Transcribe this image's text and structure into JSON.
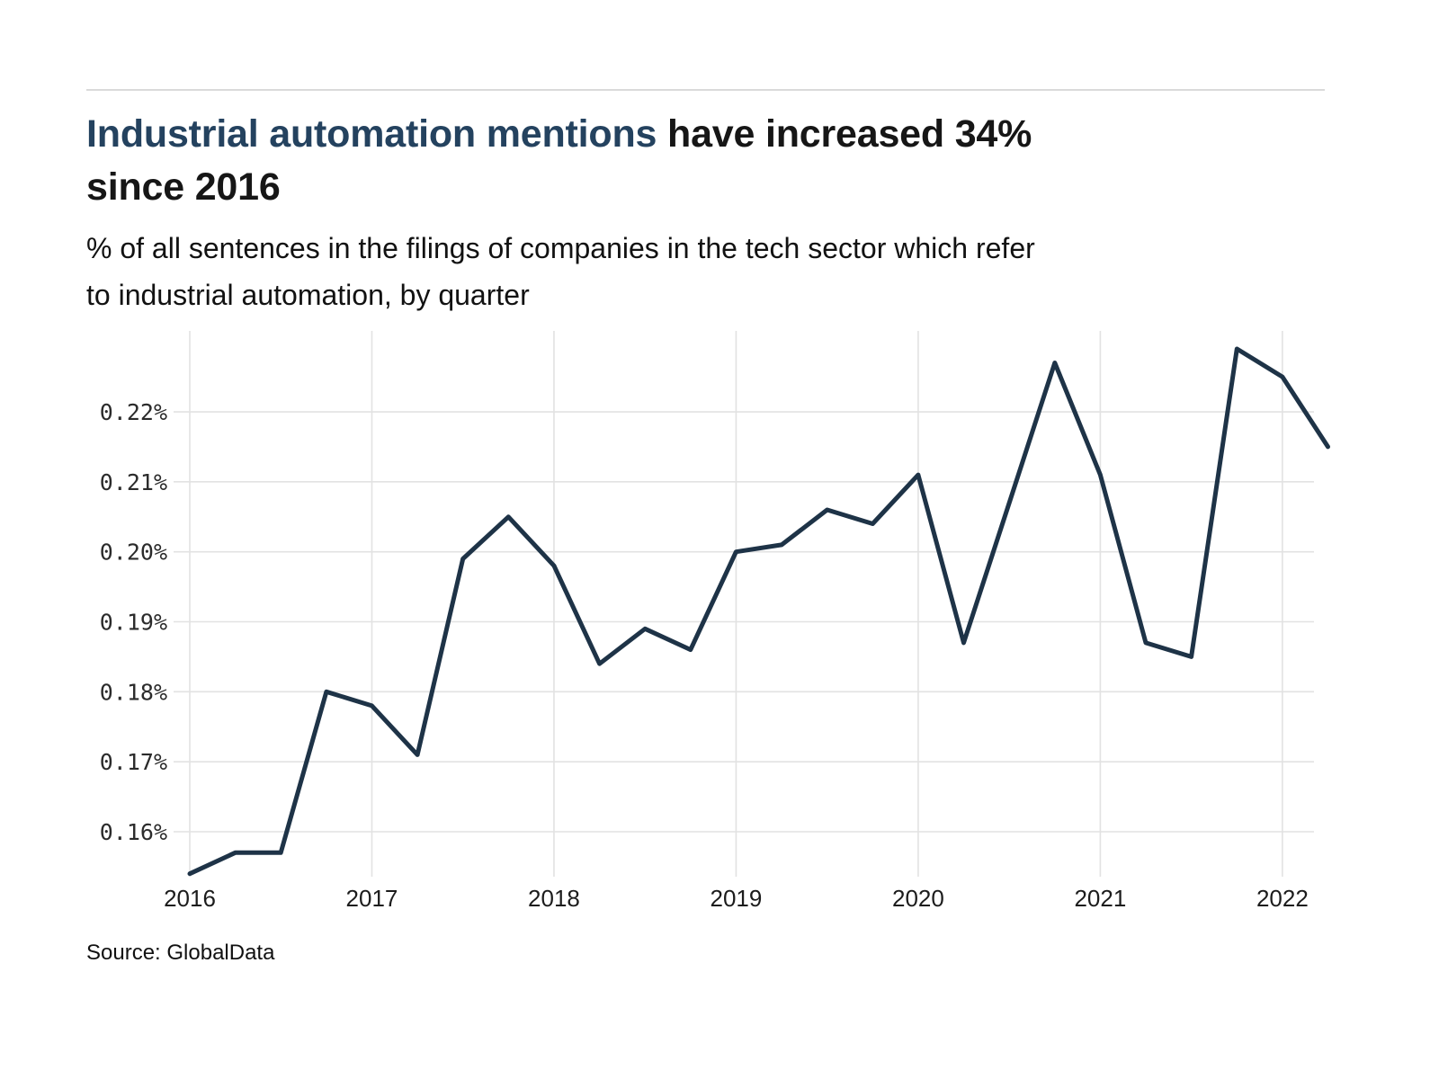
{
  "page": {
    "title_highlight": "Industrial automation mentions",
    "title_rest": "have increased 34%",
    "title_line2": "since 2016",
    "subtitle_line1": "% of all sentences in the filings of companies in the tech sector which refer",
    "subtitle_line2": "to industrial automation, by quarter",
    "source": "Source: GlobalData"
  },
  "colors": {
    "title_highlight": "#24425f",
    "line": "#1e3347",
    "grid": "#e2e2e2",
    "separator": "#dadada",
    "text": "#161616"
  },
  "chart_data": {
    "type": "line",
    "title": "Industrial automation mentions have increased 34% since 2016",
    "subtitle": "% of all sentences in the filings of companies in the tech sector which refer to industrial automation, by quarter",
    "categories": [
      "2016 Q1",
      "2016 Q2",
      "2016 Q3",
      "2016 Q4",
      "2017 Q1",
      "2017 Q2",
      "2017 Q3",
      "2017 Q4",
      "2018 Q1",
      "2018 Q2",
      "2018 Q3",
      "2018 Q4",
      "2019 Q1",
      "2019 Q2",
      "2019 Q3",
      "2019 Q4",
      "2020 Q1",
      "2020 Q2",
      "2020 Q3",
      "2020 Q4",
      "2021 Q1",
      "2021 Q2",
      "2021 Q3",
      "2021 Q4",
      "2022 Q1",
      "2022 Q2"
    ],
    "values": [
      0.154,
      0.157,
      0.157,
      0.18,
      0.178,
      0.171,
      0.199,
      0.205,
      0.198,
      0.184,
      0.189,
      0.186,
      0.2,
      0.201,
      0.206,
      0.204,
      0.211,
      0.187,
      0.207,
      0.227,
      0.211,
      0.187,
      0.185,
      0.229,
      0.225,
      0.215
    ],
    "x_tick_labels": [
      "2016",
      "2017",
      "2018",
      "2019",
      "2020",
      "2021",
      "2022"
    ],
    "y_ticks": [
      0.16,
      0.17,
      0.18,
      0.19,
      0.2,
      0.21,
      0.22
    ],
    "y_tick_labels": [
      "0.16%",
      "0.17%",
      "0.18%",
      "0.19%",
      "0.20%",
      "0.21%",
      "0.22%"
    ],
    "ylim": [
      0.153,
      0.231
    ],
    "xlabel": "",
    "ylabel": "",
    "grid": true,
    "legend": false,
    "line_color": "#1e3347",
    "source": "Source: GlobalData"
  }
}
